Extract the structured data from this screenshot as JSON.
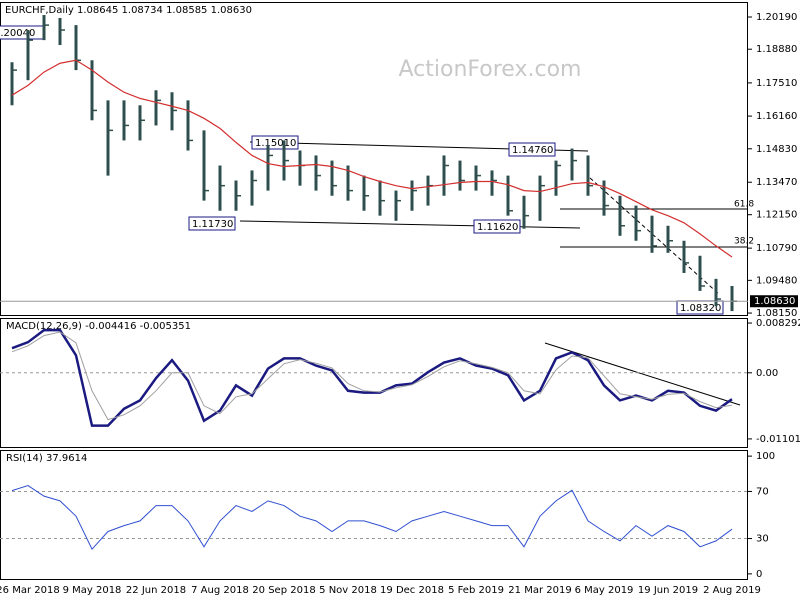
{
  "chart_data": [
    {
      "type": "ohlc",
      "title": "EURCHF,Daily 1.08645 1.08734 1.08585 1.08630",
      "watermark": "ActionForex.com",
      "color": "#2f4f4f",
      "high": [
        1.1835,
        1.1966,
        1.2027,
        1.2015,
        1.1986,
        1.1843,
        1.168,
        1.168,
        1.166,
        1.1721,
        1.1713,
        1.168,
        1.1558,
        1.1415,
        1.1354,
        1.1395,
        1.1497,
        1.1517,
        1.1476,
        1.1456,
        1.1435,
        1.1415,
        1.1374,
        1.1354,
        1.1313,
        1.1354,
        1.1374,
        1.1456,
        1.1435,
        1.1415,
        1.1395,
        1.1374,
        1.1292,
        1.1374,
        1.1435,
        1.1484,
        1.1456,
        1.1354,
        1.1292,
        1.1252,
        1.1211,
        1.117,
        1.1109,
        1.1048,
        1.0954,
        1.0925
      ],
      "low": [
        1.166,
        1.1762,
        1.1925,
        1.1905,
        1.1803,
        1.1599,
        1.1374,
        1.1517,
        1.1517,
        1.1578,
        1.1558,
        1.1476,
        1.1272,
        1.1231,
        1.1231,
        1.1252,
        1.1313,
        1.1354,
        1.1333,
        1.1313,
        1.1292,
        1.1272,
        1.1231,
        1.1211,
        1.119,
        1.1231,
        1.1252,
        1.1292,
        1.1313,
        1.1313,
        1.1292,
        1.1211,
        1.1158,
        1.119,
        1.1292,
        1.1354,
        1.1292,
        1.1211,
        1.1129,
        1.1109,
        1.106,
        1.106,
        1.0978,
        1.0905,
        1.0843,
        1.0823
      ],
      "close": [
        1.1803,
        1.1925,
        1.1986,
        1.1966,
        1.1843,
        1.1639,
        1.1558,
        1.1578,
        1.1599,
        1.168,
        1.1639,
        1.1517,
        1.1313,
        1.1333,
        1.1292,
        1.1354,
        1.1456,
        1.1435,
        1.1415,
        1.1374,
        1.1333,
        1.1313,
        1.1292,
        1.1272,
        1.1272,
        1.1313,
        1.1333,
        1.1415,
        1.1354,
        1.1374,
        1.1354,
        1.1231,
        1.1211,
        1.1333,
        1.1415,
        1.1435,
        1.1333,
        1.1252,
        1.117,
        1.115,
        1.1088,
        1.1109,
        1.1019,
        1.0925,
        1.0872,
        1.0863
      ],
      "series": [
        {
          "color": "#d32f2f",
          "values": [
            1.1701,
            1.1741,
            1.1795,
            1.1831,
            1.1843,
            1.1803,
            1.1754,
            1.1713,
            1.1688,
            1.1672,
            1.1656,
            1.1639,
            1.1607,
            1.1566,
            1.1509,
            1.1456,
            1.1423,
            1.1411,
            1.1415,
            1.1419,
            1.1411,
            1.1395,
            1.137,
            1.135,
            1.1333,
            1.1321,
            1.1329,
            1.1337,
            1.1346,
            1.135,
            1.135,
            1.1337,
            1.1313,
            1.1309,
            1.1325,
            1.1341,
            1.1346,
            1.1329,
            1.1301,
            1.1268,
            1.1235,
            1.1211,
            1.1182,
            1.1137,
            1.1088,
            1.1043
          ]
        }
      ],
      "last": {
        "value": 1.0863,
        "label": "1.08630"
      },
      "ylim": [
        1.0803,
        1.208
      ],
      "yticks": [
        {
          "value": 1.2019,
          "label": "1.20190"
        },
        {
          "value": 1.1888,
          "label": "1.18880"
        },
        {
          "value": 1.1751,
          "label": "1.17510"
        },
        {
          "value": 1.1616,
          "label": "1.16160"
        },
        {
          "value": 1.1483,
          "label": "1.14830"
        },
        {
          "value": 1.1347,
          "label": "1.13470"
        },
        {
          "value": 1.1215,
          "label": "1.12150"
        },
        {
          "value": 1.1079,
          "label": "1.10790"
        },
        {
          "value": 1.0948,
          "label": "1.09480"
        },
        {
          "value": 1.0815,
          "label": "1.08150"
        }
      ],
      "grid": false,
      "annotations": [
        "1.20040",
        "1.15010",
        "1.14760",
        "1.11730",
        "1.11620",
        "1.08320",
        "61.8",
        "38.2"
      ]
    },
    {
      "type": "line",
      "title": "MACD(12,26,9) -0.004416 -0.005351",
      "series": [
        {
          "color": "#1a1a80",
          "values": [
            0.0041,
            0.0051,
            0.0071,
            0.0071,
            0.0029,
            -0.0088,
            -0.0088,
            -0.006,
            -0.0046,
            -0.0009,
            0.0021,
            -0.0013,
            -0.008,
            -0.0063,
            -0.0021,
            -0.0038,
            0.0007,
            0.0024,
            0.0024,
            0.0012,
            0.0004,
            -0.003,
            -0.0033,
            -0.0033,
            -0.0021,
            -0.0018,
            0.0001,
            0.0017,
            0.0024,
            0.0012,
            0.0007,
            -0.0004,
            -0.0046,
            -0.003,
            0.0024,
            0.0034,
            0.0021,
            -0.0021,
            -0.0046,
            -0.0038,
            -0.0046,
            -0.003,
            -0.0033,
            -0.0055,
            -0.0063,
            -0.0044
          ]
        },
        {
          "color": "#a0a0a0",
          "values": [
            0.0035,
            0.0045,
            0.0062,
            0.0068,
            0.005,
            -0.003,
            -0.0078,
            -0.007,
            -0.0055,
            -0.003,
            0.0,
            0.0,
            -0.0055,
            -0.0068,
            -0.004,
            -0.0035,
            -0.001,
            0.0015,
            0.0022,
            0.0016,
            0.0008,
            -0.0018,
            -0.003,
            -0.0032,
            -0.0025,
            -0.002,
            -0.0006,
            0.001,
            0.002,
            0.0015,
            0.0009,
            0.0,
            -0.003,
            -0.0035,
            0.0005,
            0.0028,
            0.0025,
            -0.0005,
            -0.0035,
            -0.004,
            -0.0044,
            -0.0036,
            -0.0034,
            -0.0048,
            -0.0058,
            -0.0054
          ]
        }
      ],
      "ylim": [
        -0.01253,
        0.00913
      ],
      "yticks": [
        0.008292,
        {
          "value": 0,
          "label": "0.00"
        },
        -0.011015
      ],
      "grid": true
    },
    {
      "type": "line",
      "title": "RSI(14) 37.9614",
      "series": [
        {
          "color": "#3050d0",
          "values": [
            70.7,
            75,
            66,
            62,
            49,
            21,
            36,
            41,
            45,
            58,
            58,
            45,
            23,
            45,
            58,
            53,
            62,
            58,
            49,
            45,
            36,
            45,
            45,
            41,
            36,
            45,
            49,
            53,
            49,
            45,
            41,
            41,
            23,
            49,
            62,
            71,
            45,
            36,
            28,
            41,
            32,
            41,
            36,
            23,
            28,
            37.96
          ]
        }
      ],
      "ylim": [
        -5.2,
        105.2
      ],
      "yticks": [
        100,
        70,
        30,
        0
      ],
      "grid": true,
      "categories": [
        null,
        "26 Mar 2018",
        null,
        null,
        null,
        "9 May 2018",
        null,
        null,
        null,
        "22 Jun 2018",
        null,
        null,
        null,
        "7 Aug 2018",
        null,
        null,
        null,
        "20 Sep 2018",
        null,
        null,
        null,
        "5 Nov 2018",
        null,
        null,
        null,
        "19 Dec 2018",
        null,
        null,
        null,
        "5 Feb 2019",
        null,
        null,
        null,
        "21 Mar 2019",
        null,
        null,
        null,
        "6 May 2019",
        null,
        null,
        null,
        "19 Jun 2019",
        null,
        null,
        null,
        "2 Aug 2019"
      ]
    }
  ]
}
